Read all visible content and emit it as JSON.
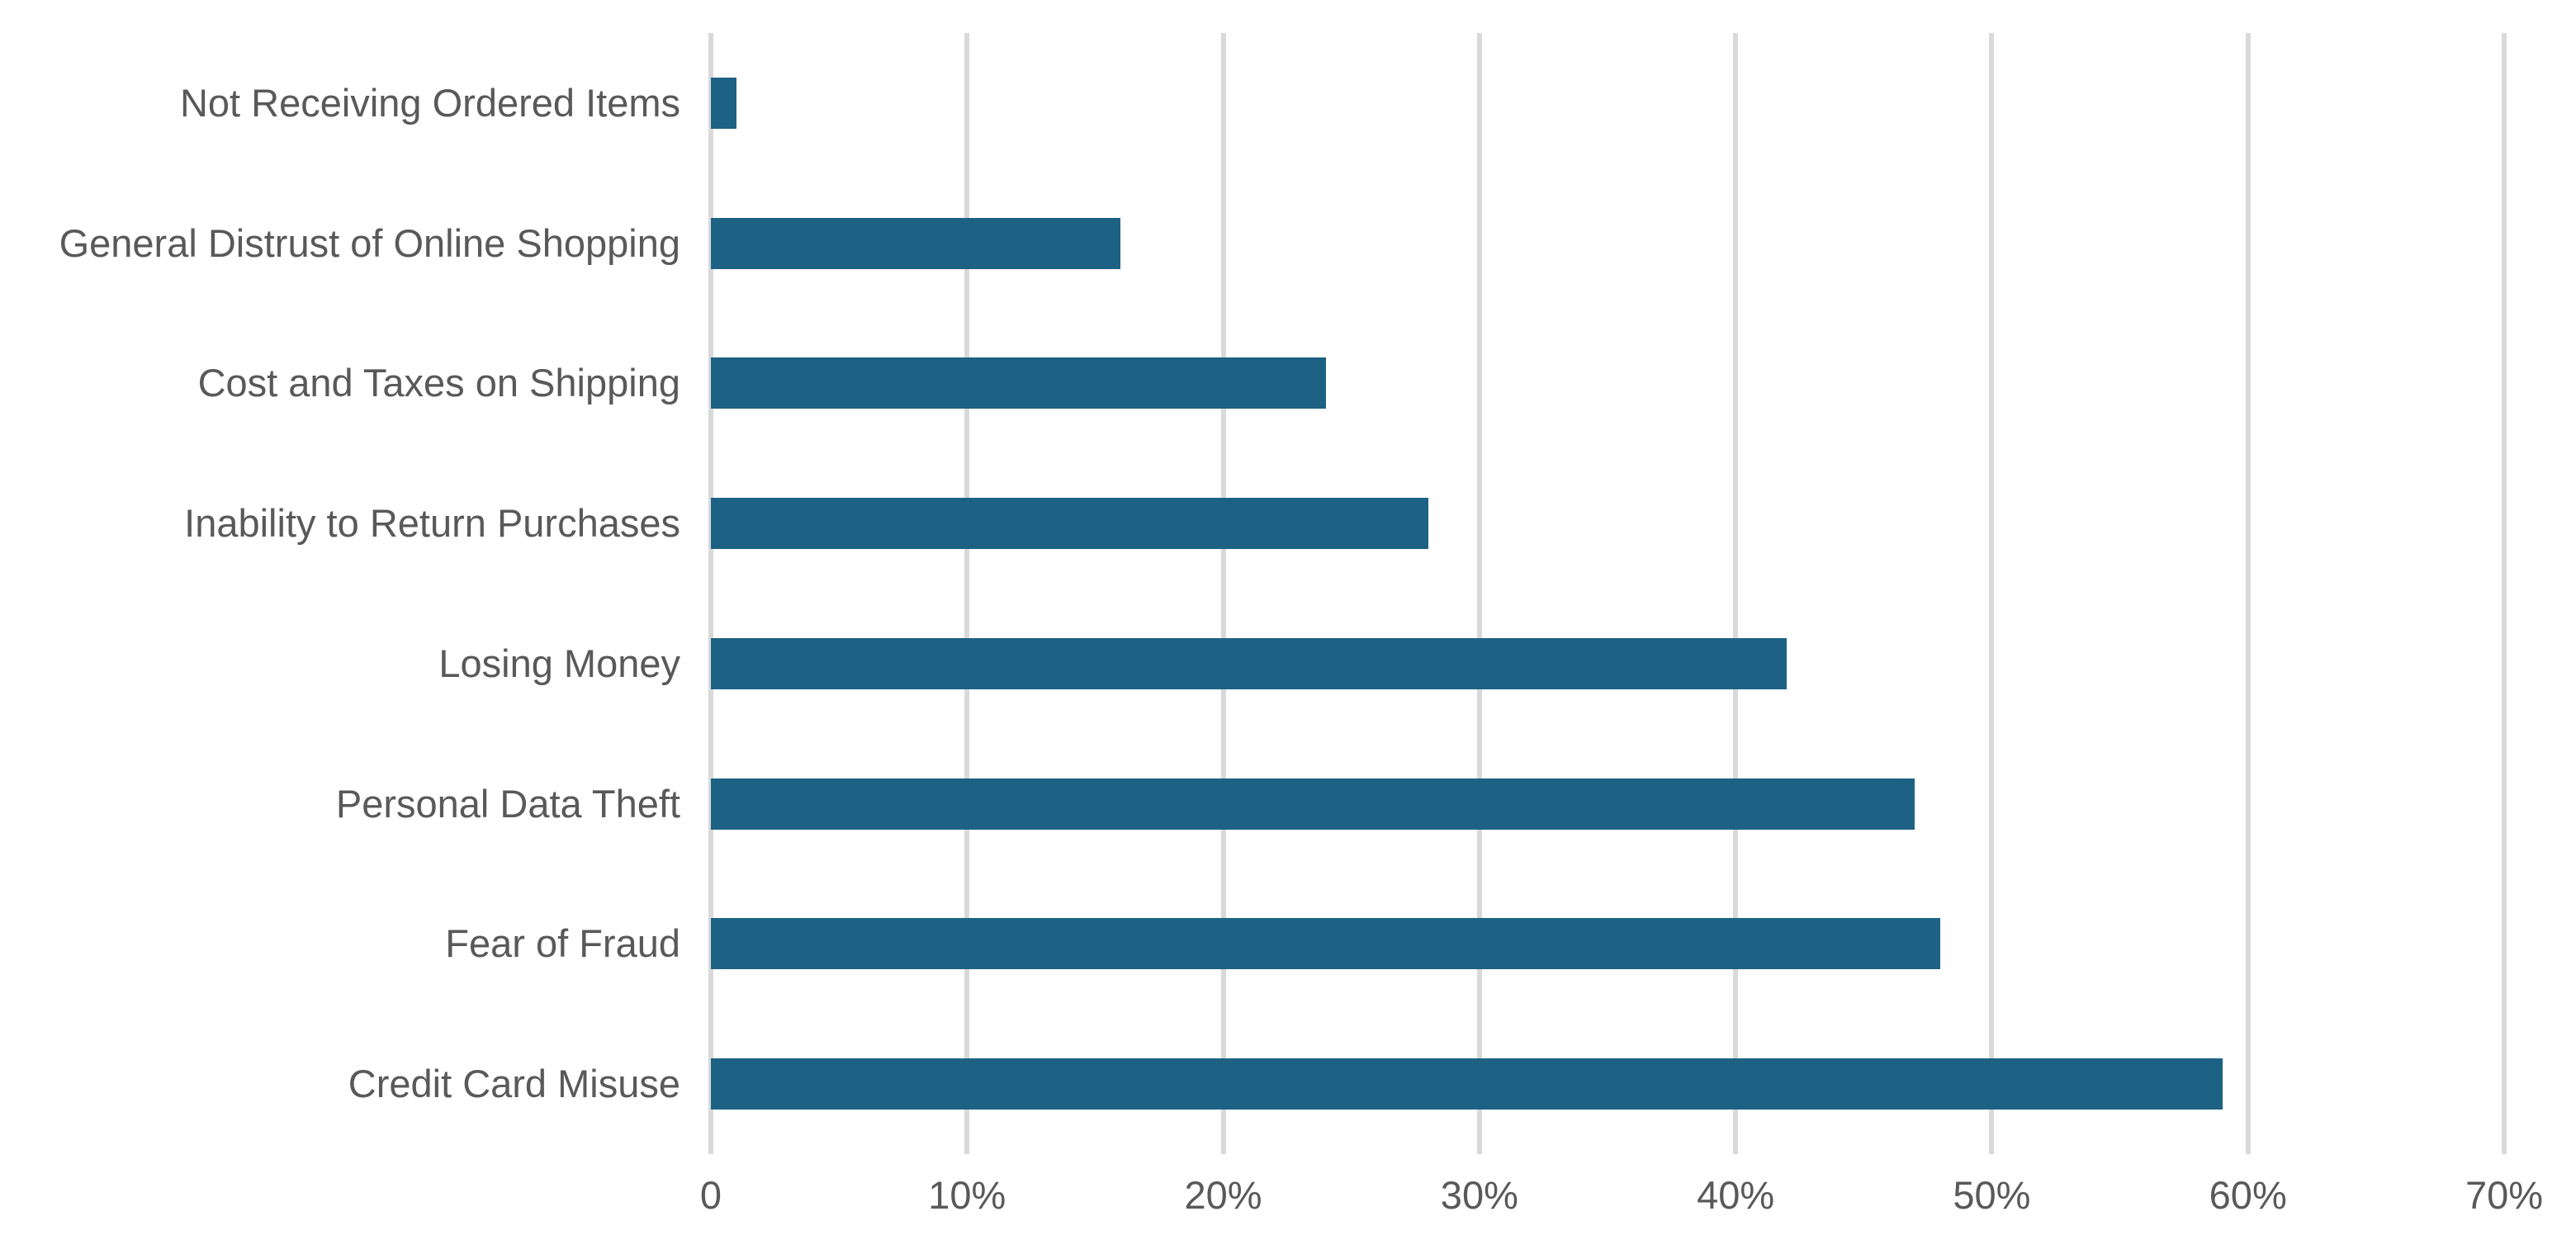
{
  "chart_data": {
    "type": "bar",
    "orientation": "horizontal",
    "title": "",
    "xlabel": "",
    "ylabel": "",
    "categories": [
      "Not Receiving Ordered Items",
      "General Distrust of Online Shopping",
      "Cost and Taxes on Shipping",
      "Inability to Return Purchases",
      "Losing Money",
      "Personal Data Theft",
      "Fear of Fraud",
      "Credit Card Misuse"
    ],
    "values": [
      1,
      16,
      24,
      28,
      42,
      47,
      48,
      59
    ],
    "value_unit": "%",
    "xlim": [
      0,
      70
    ],
    "x_tick_values": [
      0,
      10,
      20,
      30,
      40,
      50,
      60,
      70
    ],
    "x_tick_labels": [
      "0",
      "10%",
      "20%",
      "30%",
      "40%",
      "50%",
      "60%",
      "70%"
    ],
    "grid": "vertical-gridlines-on",
    "legend": "none",
    "colors": {
      "bar": "#1d6284",
      "gridline": "#d9d9d9",
      "text": "#595959",
      "background": "#ffffff"
    }
  }
}
